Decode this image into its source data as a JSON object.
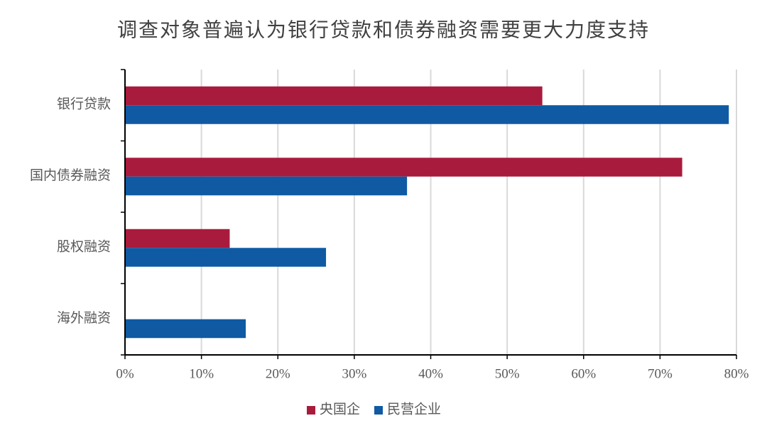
{
  "chart_data": {
    "type": "hbar",
    "title": "调查对象普遍认为银行贷款和债券融资需要更大力度支持",
    "categories": [
      "银行贷款",
      "国内债券融资",
      "股权融资",
      "海外融资"
    ],
    "series": [
      {
        "name": "央国企",
        "color": "#a91b3c",
        "values": [
          54.6,
          72.9,
          13.7,
          0
        ]
      },
      {
        "name": "民营企业",
        "color": "#0f5aa3",
        "values": [
          79.0,
          36.9,
          26.3,
          15.8
        ]
      }
    ],
    "xlim": [
      0,
      80
    ],
    "xticks": [
      {
        "value": 0,
        "label": "0%"
      },
      {
        "value": 10,
        "label": "10%"
      },
      {
        "value": 20,
        "label": "20%"
      },
      {
        "value": 30,
        "label": "30%"
      },
      {
        "value": 40,
        "label": "40%"
      },
      {
        "value": 50,
        "label": "50%"
      },
      {
        "value": 60,
        "label": "60%"
      },
      {
        "value": 70,
        "label": "70%"
      },
      {
        "value": 80,
        "label": "80%"
      }
    ],
    "grid": true,
    "legend": "bottom"
  }
}
